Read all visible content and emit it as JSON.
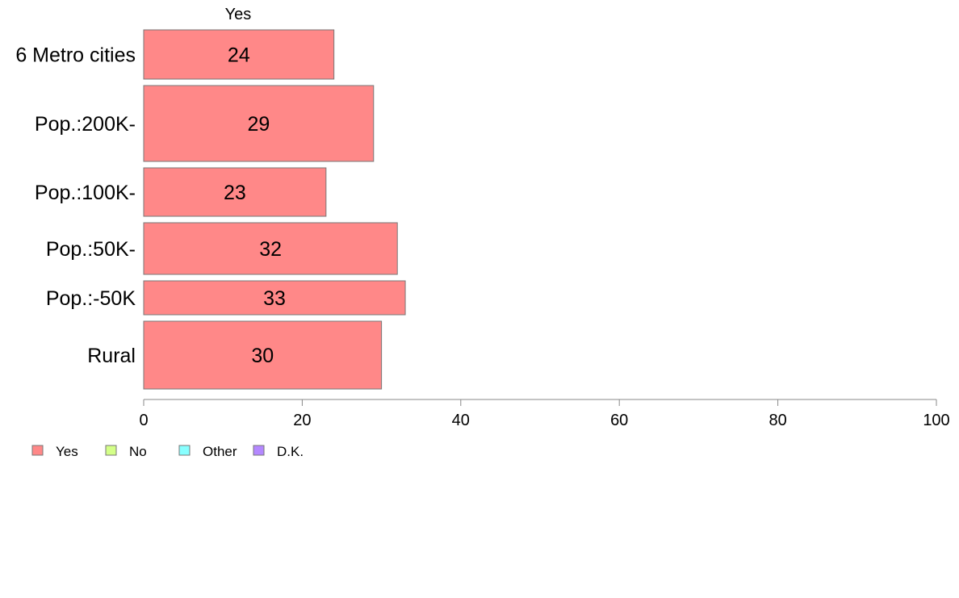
{
  "chart_data": {
    "type": "bar",
    "orientation": "horizontal",
    "column_title": "Yes",
    "categories": [
      "6 Metro cities",
      "Pop.:200K-",
      "Pop.:100K-",
      "Pop.:50K-",
      "Pop.:-50K",
      "Rural"
    ],
    "series": [
      {
        "name": "Yes",
        "values": [
          24,
          29,
          23,
          32,
          33,
          30
        ],
        "color": "#ff8888"
      }
    ],
    "data_labels": [
      "24",
      "29",
      "23",
      "32",
      "33",
      "30"
    ],
    "xlim": [
      0,
      100
    ],
    "x_ticks": [
      0,
      20,
      40,
      60,
      80,
      100
    ],
    "x_tick_labels": [
      "0",
      "20",
      "40",
      "60",
      "80",
      "100"
    ],
    "grid": false,
    "legend": {
      "placement": "bottom-left",
      "items": [
        {
          "label": "Yes",
          "color": "#ff8888"
        },
        {
          "label": "No",
          "color": "#d4ff88"
        },
        {
          "label": "Other",
          "color": "#88ffff"
        },
        {
          "label": "D.K.",
          "color": "#b488ff"
        }
      ]
    }
  }
}
